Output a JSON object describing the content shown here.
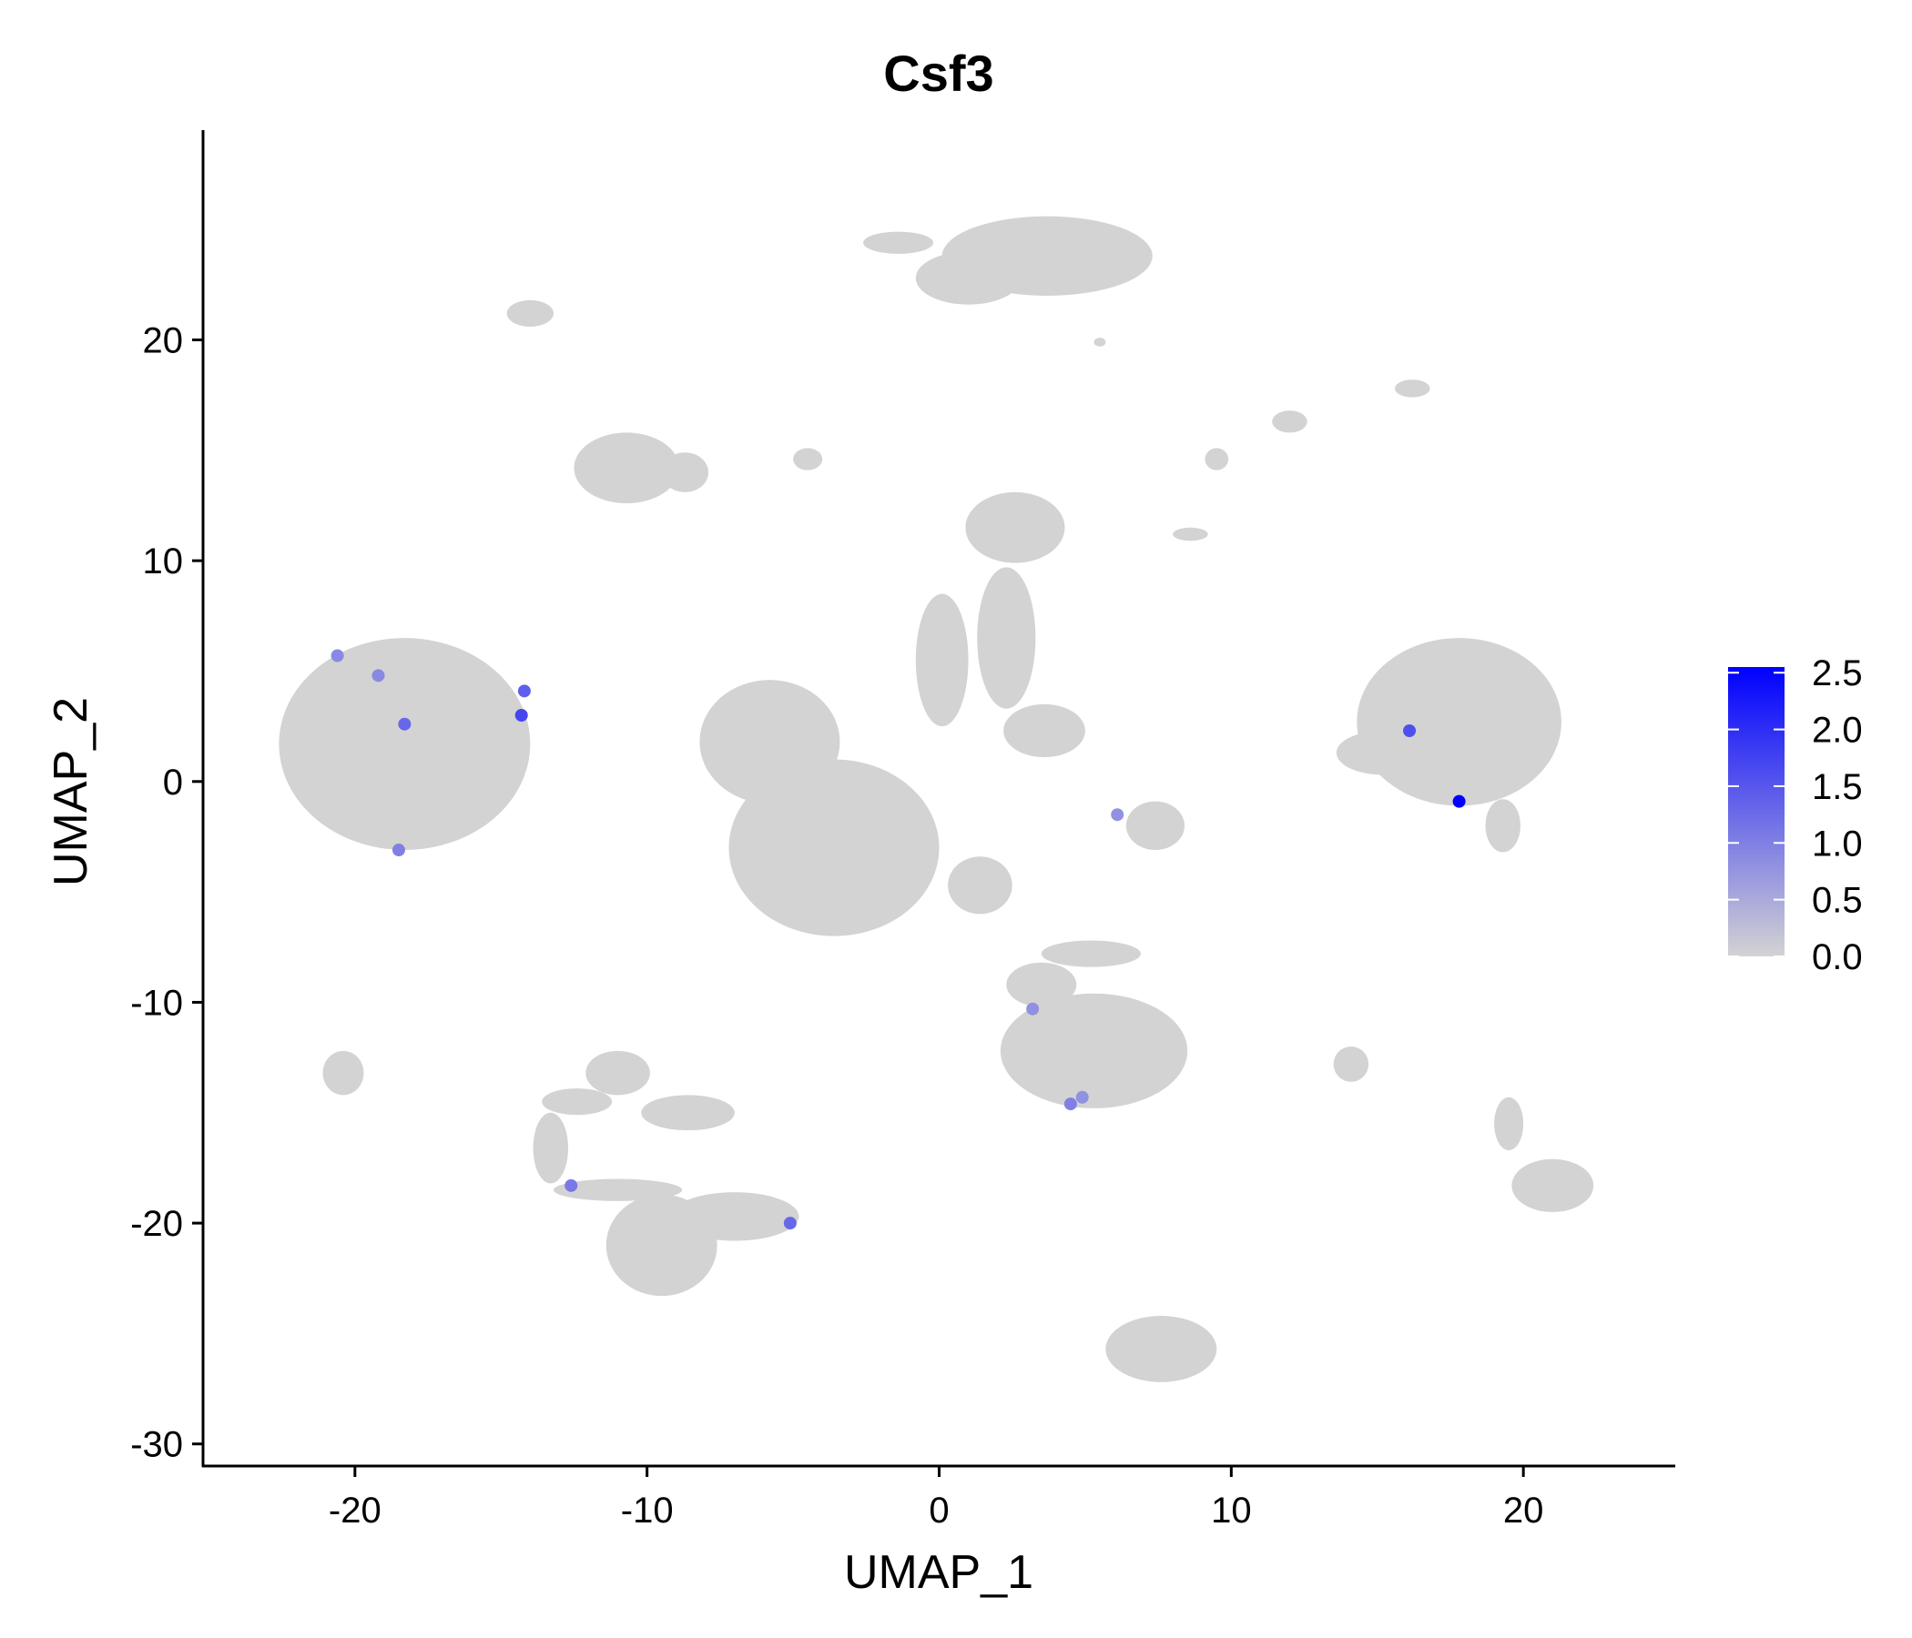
{
  "chart_data": {
    "type": "scatter",
    "title": "Csf3",
    "xlabel": "UMAP_1",
    "ylabel": "UMAP_2",
    "xlim": [
      -25.2,
      25.2
    ],
    "ylim": [
      -31,
      29.5
    ],
    "xticks": [
      -20,
      -10,
      0,
      10,
      20
    ],
    "yticks": [
      -30,
      -20,
      -10,
      0,
      10,
      20
    ],
    "legend": {
      "placement": "right",
      "min": 0.0,
      "max": 2.55,
      "ticks": [
        "0.0",
        "0.5",
        "1.0",
        "1.5",
        "2.0",
        "2.5"
      ],
      "low_color": "#d3d3d3",
      "high_color": "#0000ff"
    },
    "background_cell_color": "#d3d3d3",
    "clusters": [
      {
        "cx": -18.3,
        "cy": 1.7,
        "rx": 4.3,
        "ry": 4.8
      },
      {
        "cx": -3.6,
        "cy": -3.0,
        "rx": 3.6,
        "ry": 4.0
      },
      {
        "cx": -5.8,
        "cy": 1.8,
        "rx": 2.4,
        "ry": 2.8
      },
      {
        "cx": 0.1,
        "cy": 5.5,
        "rx": 0.9,
        "ry": 3.0
      },
      {
        "cx": 2.3,
        "cy": 6.5,
        "rx": 1.0,
        "ry": 3.2
      },
      {
        "cx": 2.6,
        "cy": 11.5,
        "rx": 1.7,
        "ry": 1.6
      },
      {
        "cx": 3.7,
        "cy": 23.8,
        "rx": 3.6,
        "ry": 1.8
      },
      {
        "cx": 1.0,
        "cy": 22.8,
        "rx": 1.8,
        "ry": 1.2
      },
      {
        "cx": -1.4,
        "cy": 24.4,
        "rx": 1.2,
        "ry": 0.5
      },
      {
        "cx": -10.7,
        "cy": 14.2,
        "rx": 1.8,
        "ry": 1.6
      },
      {
        "cx": -8.7,
        "cy": 14.0,
        "rx": 0.8,
        "ry": 0.9
      },
      {
        "cx": -14.0,
        "cy": 21.2,
        "rx": 0.8,
        "ry": 0.6
      },
      {
        "cx": 17.8,
        "cy": 2.7,
        "rx": 3.5,
        "ry": 3.8
      },
      {
        "cx": 15.2,
        "cy": 1.3,
        "rx": 1.6,
        "ry": 1.0
      },
      {
        "cx": 19.3,
        "cy": -2.0,
        "rx": 0.6,
        "ry": 1.2
      },
      {
        "cx": 5.3,
        "cy": -12.2,
        "rx": 3.2,
        "ry": 2.6
      },
      {
        "cx": 3.5,
        "cy": -9.2,
        "rx": 1.2,
        "ry": 1.0
      },
      {
        "cx": 5.2,
        "cy": -7.8,
        "rx": 1.7,
        "ry": 0.6
      },
      {
        "cx": -9.5,
        "cy": -21.0,
        "rx": 1.9,
        "ry": 2.3
      },
      {
        "cx": -7.0,
        "cy": -19.7,
        "rx": 2.2,
        "ry": 1.1
      },
      {
        "cx": -11.0,
        "cy": -18.5,
        "rx": 2.2,
        "ry": 0.5
      },
      {
        "cx": -13.3,
        "cy": -16.6,
        "rx": 0.6,
        "ry": 1.6
      },
      {
        "cx": -12.4,
        "cy": -14.5,
        "rx": 1.2,
        "ry": 0.6
      },
      {
        "cx": -11.0,
        "cy": -13.2,
        "rx": 1.1,
        "ry": 1.0
      },
      {
        "cx": -8.6,
        "cy": -15.0,
        "rx": 1.6,
        "ry": 0.8
      },
      {
        "cx": 7.6,
        "cy": -25.7,
        "rx": 1.9,
        "ry": 1.5
      },
      {
        "cx": 21.0,
        "cy": -18.3,
        "rx": 1.4,
        "ry": 1.2
      },
      {
        "cx": 19.5,
        "cy": -15.5,
        "rx": 0.5,
        "ry": 1.2
      },
      {
        "cx": -20.4,
        "cy": -13.2,
        "rx": 0.7,
        "ry": 1.0
      },
      {
        "cx": 7.4,
        "cy": -2.0,
        "rx": 1.0,
        "ry": 1.1
      },
      {
        "cx": 3.6,
        "cy": 2.3,
        "rx": 1.4,
        "ry": 1.2
      },
      {
        "cx": 1.4,
        "cy": -4.7,
        "rx": 1.1,
        "ry": 1.3
      },
      {
        "cx": 14.1,
        "cy": -12.8,
        "rx": 0.6,
        "ry": 0.8
      },
      {
        "cx": 16.2,
        "cy": 17.8,
        "rx": 0.6,
        "ry": 0.4
      },
      {
        "cx": 12.0,
        "cy": 16.3,
        "rx": 0.6,
        "ry": 0.5
      },
      {
        "cx": 9.5,
        "cy": 14.6,
        "rx": 0.4,
        "ry": 0.5
      },
      {
        "cx": 8.6,
        "cy": 11.2,
        "rx": 0.6,
        "ry": 0.3
      },
      {
        "cx": 5.5,
        "cy": 19.9,
        "rx": 0.2,
        "ry": 0.2
      },
      {
        "cx": -4.5,
        "cy": 14.6,
        "rx": 0.5,
        "ry": 0.5
      }
    ],
    "expressing_cells": [
      {
        "x": -20.6,
        "y": 5.7,
        "value": 0.9
      },
      {
        "x": -19.2,
        "y": 4.8,
        "value": 0.9
      },
      {
        "x": -18.3,
        "y": 2.6,
        "value": 1.3
      },
      {
        "x": -14.2,
        "y": 4.1,
        "value": 1.4
      },
      {
        "x": -14.3,
        "y": 3.0,
        "value": 1.7
      },
      {
        "x": -18.5,
        "y": -3.1,
        "value": 1.0
      },
      {
        "x": 16.1,
        "y": 2.3,
        "value": 1.6
      },
      {
        "x": 17.8,
        "y": -0.9,
        "value": 2.55
      },
      {
        "x": 6.1,
        "y": -1.5,
        "value": 0.8
      },
      {
        "x": 3.2,
        "y": -10.3,
        "value": 0.8
      },
      {
        "x": 4.5,
        "y": -14.6,
        "value": 1.0
      },
      {
        "x": 4.9,
        "y": -14.3,
        "value": 0.8
      },
      {
        "x": -12.6,
        "y": -18.3,
        "value": 1.1
      },
      {
        "x": -5.1,
        "y": -20.0,
        "value": 1.3
      }
    ]
  }
}
